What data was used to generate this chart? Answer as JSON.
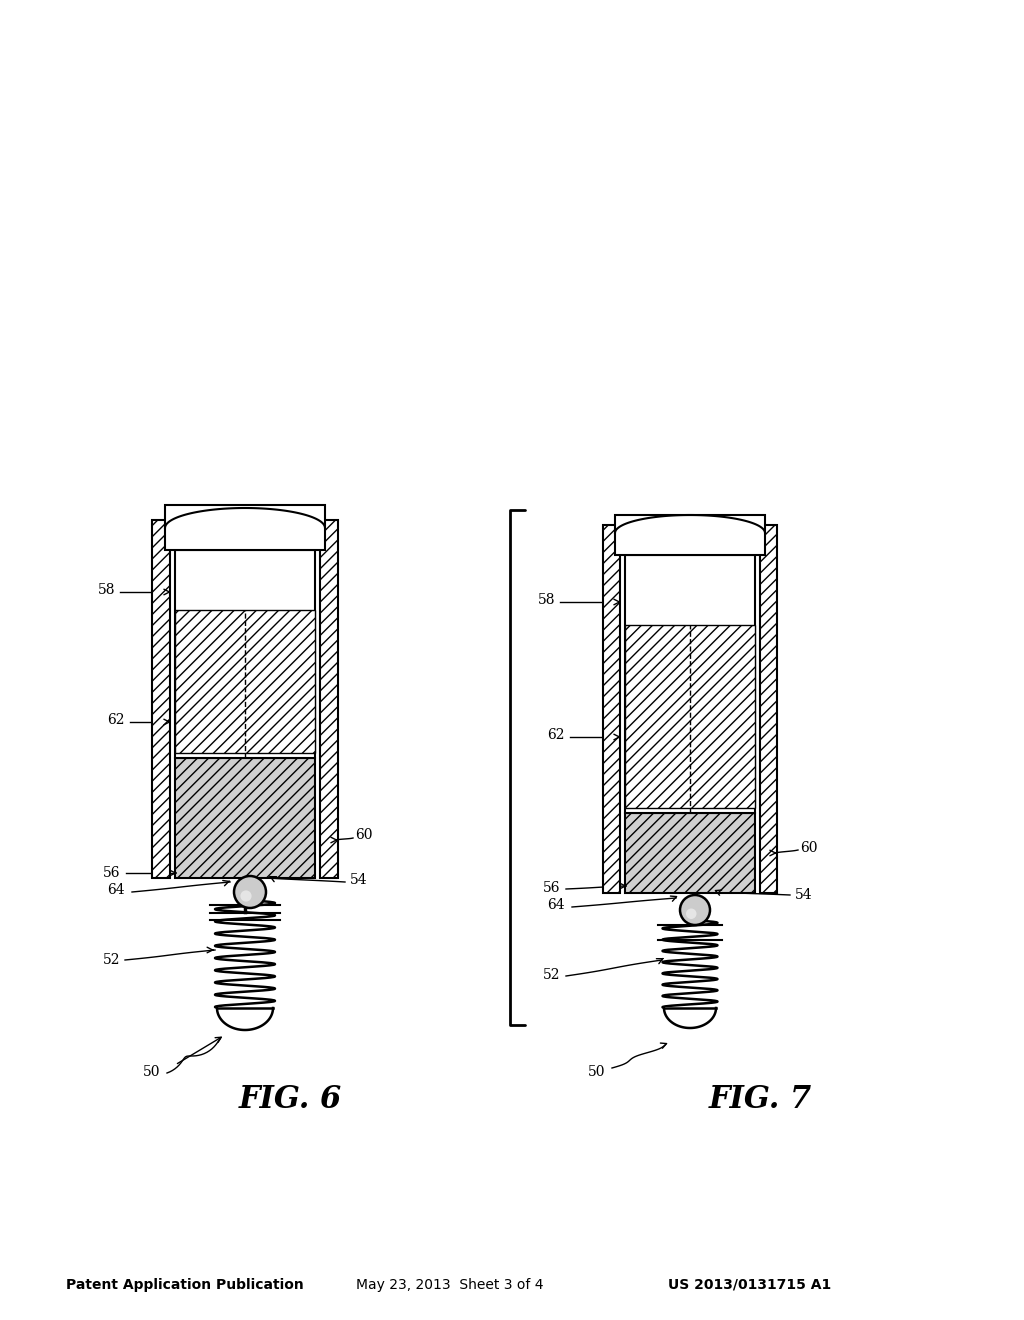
{
  "background_color": "#ffffff",
  "header_text": "Patent Application Publication",
  "header_date": "May 23, 2013  Sheet 3 of 4",
  "header_patent": "US 2013/0131715 A1",
  "fig6_label": "FIG. 6",
  "fig7_label": "FIG. 7",
  "labels": [
    "50",
    "52",
    "54",
    "56",
    "58",
    "60",
    "62",
    "64"
  ],
  "line_color": "#1a1a1a",
  "hatch_color": "#1a1a1a"
}
